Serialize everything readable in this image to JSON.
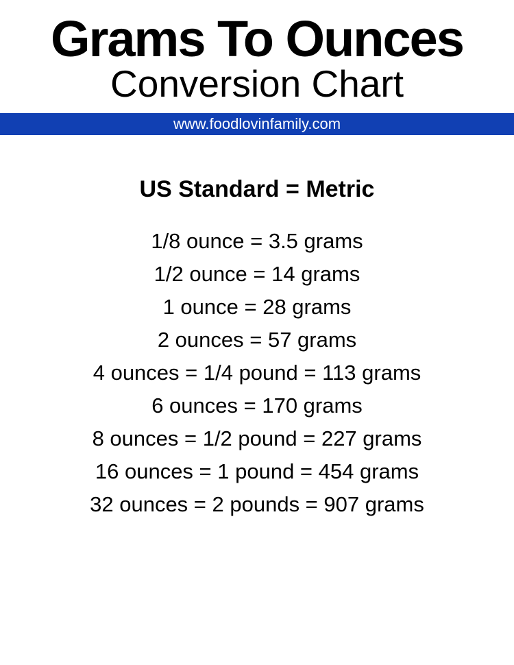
{
  "header": {
    "main_title": "Grams To Ounces",
    "subtitle": "Conversion Chart",
    "url": "www.foodlovinfamily.com"
  },
  "section_heading": "US Standard = Metric",
  "colors": {
    "bar_background": "#1140b3",
    "url_text": "#ffffff",
    "page_background": "#ffffff",
    "text": "#000000"
  },
  "typography": {
    "main_title_fontsize": 74,
    "main_title_weight": 900,
    "subtitle_fontsize": 55,
    "subtitle_weight": 400,
    "url_fontsize": 22,
    "heading_fontsize": 34,
    "heading_weight": 700,
    "line_fontsize": 31
  },
  "conversions": [
    "1/8 ounce = 3.5 grams",
    "1/2 ounce = 14 grams",
    "1 ounce = 28 grams",
    "2 ounces = 57 grams",
    "4 ounces = 1/4 pound = 113 grams",
    "6 ounces = 170 grams",
    "8 ounces = 1/2 pound = 227 grams",
    "16 ounces = 1 pound = 454 grams",
    "32 ounces = 2 pounds = 907 grams"
  ]
}
